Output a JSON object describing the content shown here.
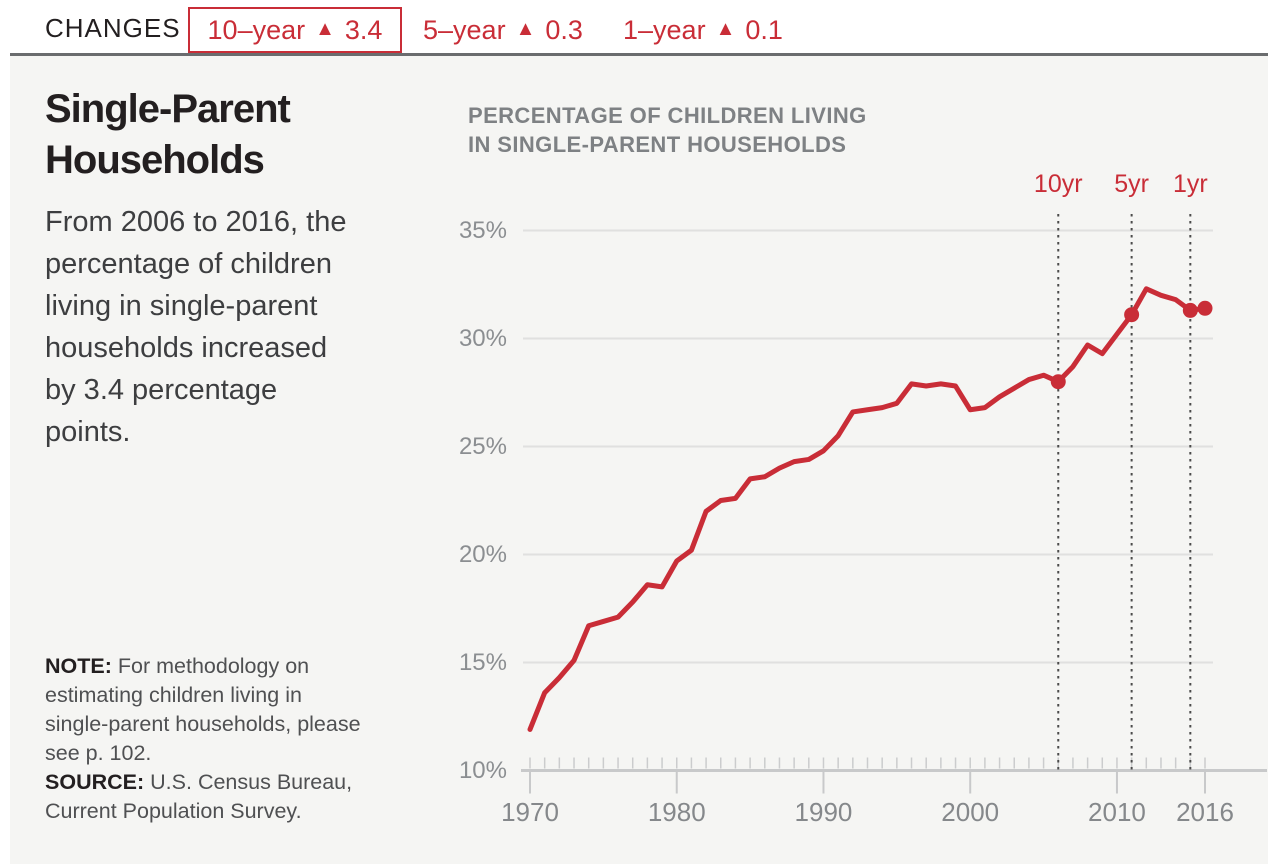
{
  "header": {
    "label": "CHANGES",
    "changes": [
      {
        "period": "10–year",
        "icon": "▲",
        "value": "3.4",
        "boxed": true
      },
      {
        "period": "5–year",
        "icon": "▲",
        "value": "0.3",
        "boxed": false
      },
      {
        "period": "1–year",
        "icon": "▲",
        "value": "0.1",
        "boxed": false
      }
    ]
  },
  "title": {
    "line1": "Single-Parent",
    "line2": "Households"
  },
  "intro_lines": [
    "From 2006 to 2016, the",
    "percentage of children",
    "living in single-parent",
    "households increased",
    "by 3.4 percentage",
    "points."
  ],
  "note": {
    "label": "NOTE:",
    "text_first_line": "For methodology on",
    "lines": [
      "estimating children living in",
      "single-parent households, please",
      "see p. 102."
    ]
  },
  "source": {
    "label": "SOURCE:",
    "text_first_line": "U.S. Census Bureau,",
    "lines": [
      "Current Population Survey."
    ]
  },
  "colors": {
    "accent_red": "#c92d37",
    "panel_background": "#f5f5f3"
  },
  "chart_data": {
    "type": "line",
    "title_lines": [
      "PERCENTAGE OF CHILDREN LIVING",
      "IN SINGLE-PARENT HOUSEHOLDS"
    ],
    "x": [
      1970,
      1971,
      1972,
      1973,
      1974,
      1975,
      1976,
      1977,
      1978,
      1979,
      1980,
      1981,
      1982,
      1983,
      1984,
      1985,
      1986,
      1987,
      1988,
      1989,
      1990,
      1991,
      1992,
      1993,
      1994,
      1995,
      1996,
      1997,
      1998,
      1999,
      2000,
      2001,
      2002,
      2003,
      2004,
      2005,
      2006,
      2007,
      2008,
      2009,
      2010,
      2011,
      2012,
      2013,
      2014,
      2015,
      2016
    ],
    "series": [
      {
        "name": "Percentage of children living in single-parent households",
        "values": [
          11.9,
          13.6,
          14.3,
          15.1,
          16.7,
          16.9,
          17.1,
          17.8,
          18.6,
          18.5,
          19.7,
          20.2,
          22.0,
          22.5,
          22.6,
          23.5,
          23.6,
          24.0,
          24.3,
          24.4,
          24.8,
          25.5,
          26.6,
          26.7,
          26.8,
          27.0,
          27.9,
          27.8,
          27.9,
          27.8,
          26.7,
          26.8,
          27.3,
          27.7,
          28.1,
          28.3,
          28.0,
          28.7,
          29.7,
          29.3,
          30.2,
          31.1,
          32.3,
          32.0,
          31.8,
          31.3,
          31.4
        ]
      }
    ],
    "unit": "%",
    "xlim": [
      1970,
      2016
    ],
    "ylim": [
      10,
      35
    ],
    "yticks": [
      10,
      15,
      20,
      25,
      30,
      35
    ],
    "ytick_labels": [
      "10%",
      "15%",
      "20%",
      "25%",
      "30%",
      "35%"
    ],
    "xticks": [
      1970,
      1980,
      1990,
      2000,
      2010,
      2016
    ],
    "annotations": [
      {
        "label": "10yr",
        "year": 2006
      },
      {
        "label": "5yr",
        "year": 2011
      },
      {
        "label": "1yr",
        "year": 2015
      }
    ],
    "marker_years": [
      2006,
      2011,
      2015,
      2016
    ],
    "line_color": "#c92d37",
    "grid": "horizontal"
  }
}
